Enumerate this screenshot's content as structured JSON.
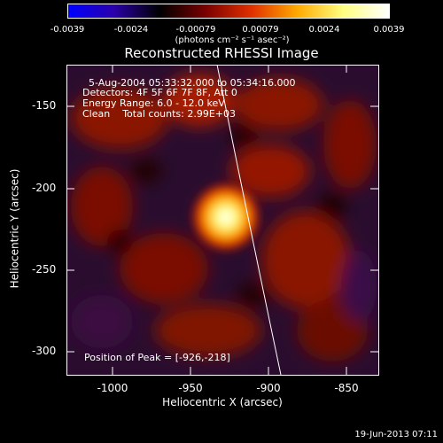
{
  "window": {
    "title": "Reconstructed RHESSI Image"
  },
  "colorbar": {
    "ticks": [
      "-0.0039",
      "-0.0024",
      "-0.00079",
      "0.00079",
      "0.0024",
      "0.0039"
    ],
    "unit": "(photons cm⁻² s⁻¹ asec⁻²)",
    "colors": [
      "#0000ff",
      "#2a00aa",
      "#000000",
      "#7a0000",
      "#e03000",
      "#ffaa00",
      "#ffff80",
      "#ffffff"
    ]
  },
  "annotations": {
    "line1": "5-Aug-2004 05:33:32.000 to 05:34:16.000",
    "line2": "Detectors: 4F 5F 6F 7F 8F, Att 0",
    "line3": "Energy Range: 6.0 - 12.0 keV",
    "line4": "Clean    Total counts: 2.99E+03",
    "peak": "Position of Peak = [-926,-218]"
  },
  "axes": {
    "xlabel": "Heliocentric X (arcsec)",
    "ylabel": "Heliocentric Y (arcsec)",
    "xticks": [
      "-1000",
      "-950",
      "-900",
      "-850"
    ],
    "yticks": [
      "-150",
      "-200",
      "-250",
      "-300"
    ]
  },
  "footer": {
    "timestamp": "19-Jun-2013 07:11"
  }
}
